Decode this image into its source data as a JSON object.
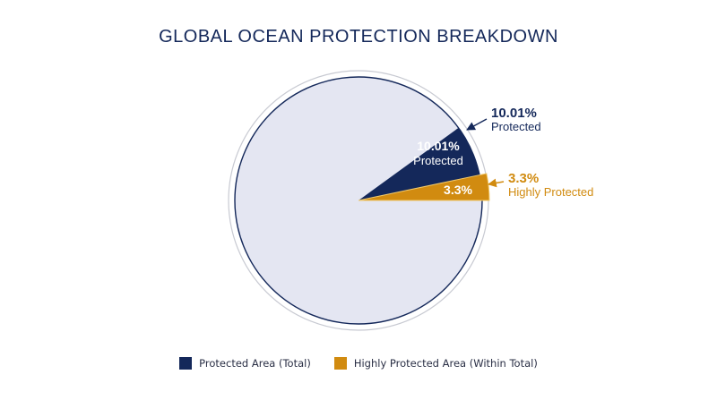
{
  "colors": {
    "protected": "#14285a",
    "highly_protected": "#d18b10",
    "remaining": "#e4e6f2",
    "outline": "#14285a",
    "ring": "#c8cad2"
  },
  "chart_data": {
    "type": "pie",
    "title": "GLOBAL OCEAN PROTECTION BREAKDOWN",
    "slices": [
      {
        "key": "protected",
        "value": 10.01
      },
      {
        "key": "highly_protected",
        "value": 3.3
      }
    ],
    "labels": {
      "protected_inside_value": "10.01%",
      "protected_inside_text": "Protected",
      "highly_inside_value": "3.3%",
      "protected_outside_value": "10.01%",
      "protected_outside_text": "Protected",
      "highly_outside_value": "3.3%",
      "highly_outside_text": "Highly Protected"
    },
    "legend": [
      {
        "label": "Protected Area (Total)",
        "color": "#14285a"
      },
      {
        "label": "Highly Protected Area (Within Total)",
        "color": "#d18b10"
      }
    ],
    "legend_position": "bottom"
  }
}
